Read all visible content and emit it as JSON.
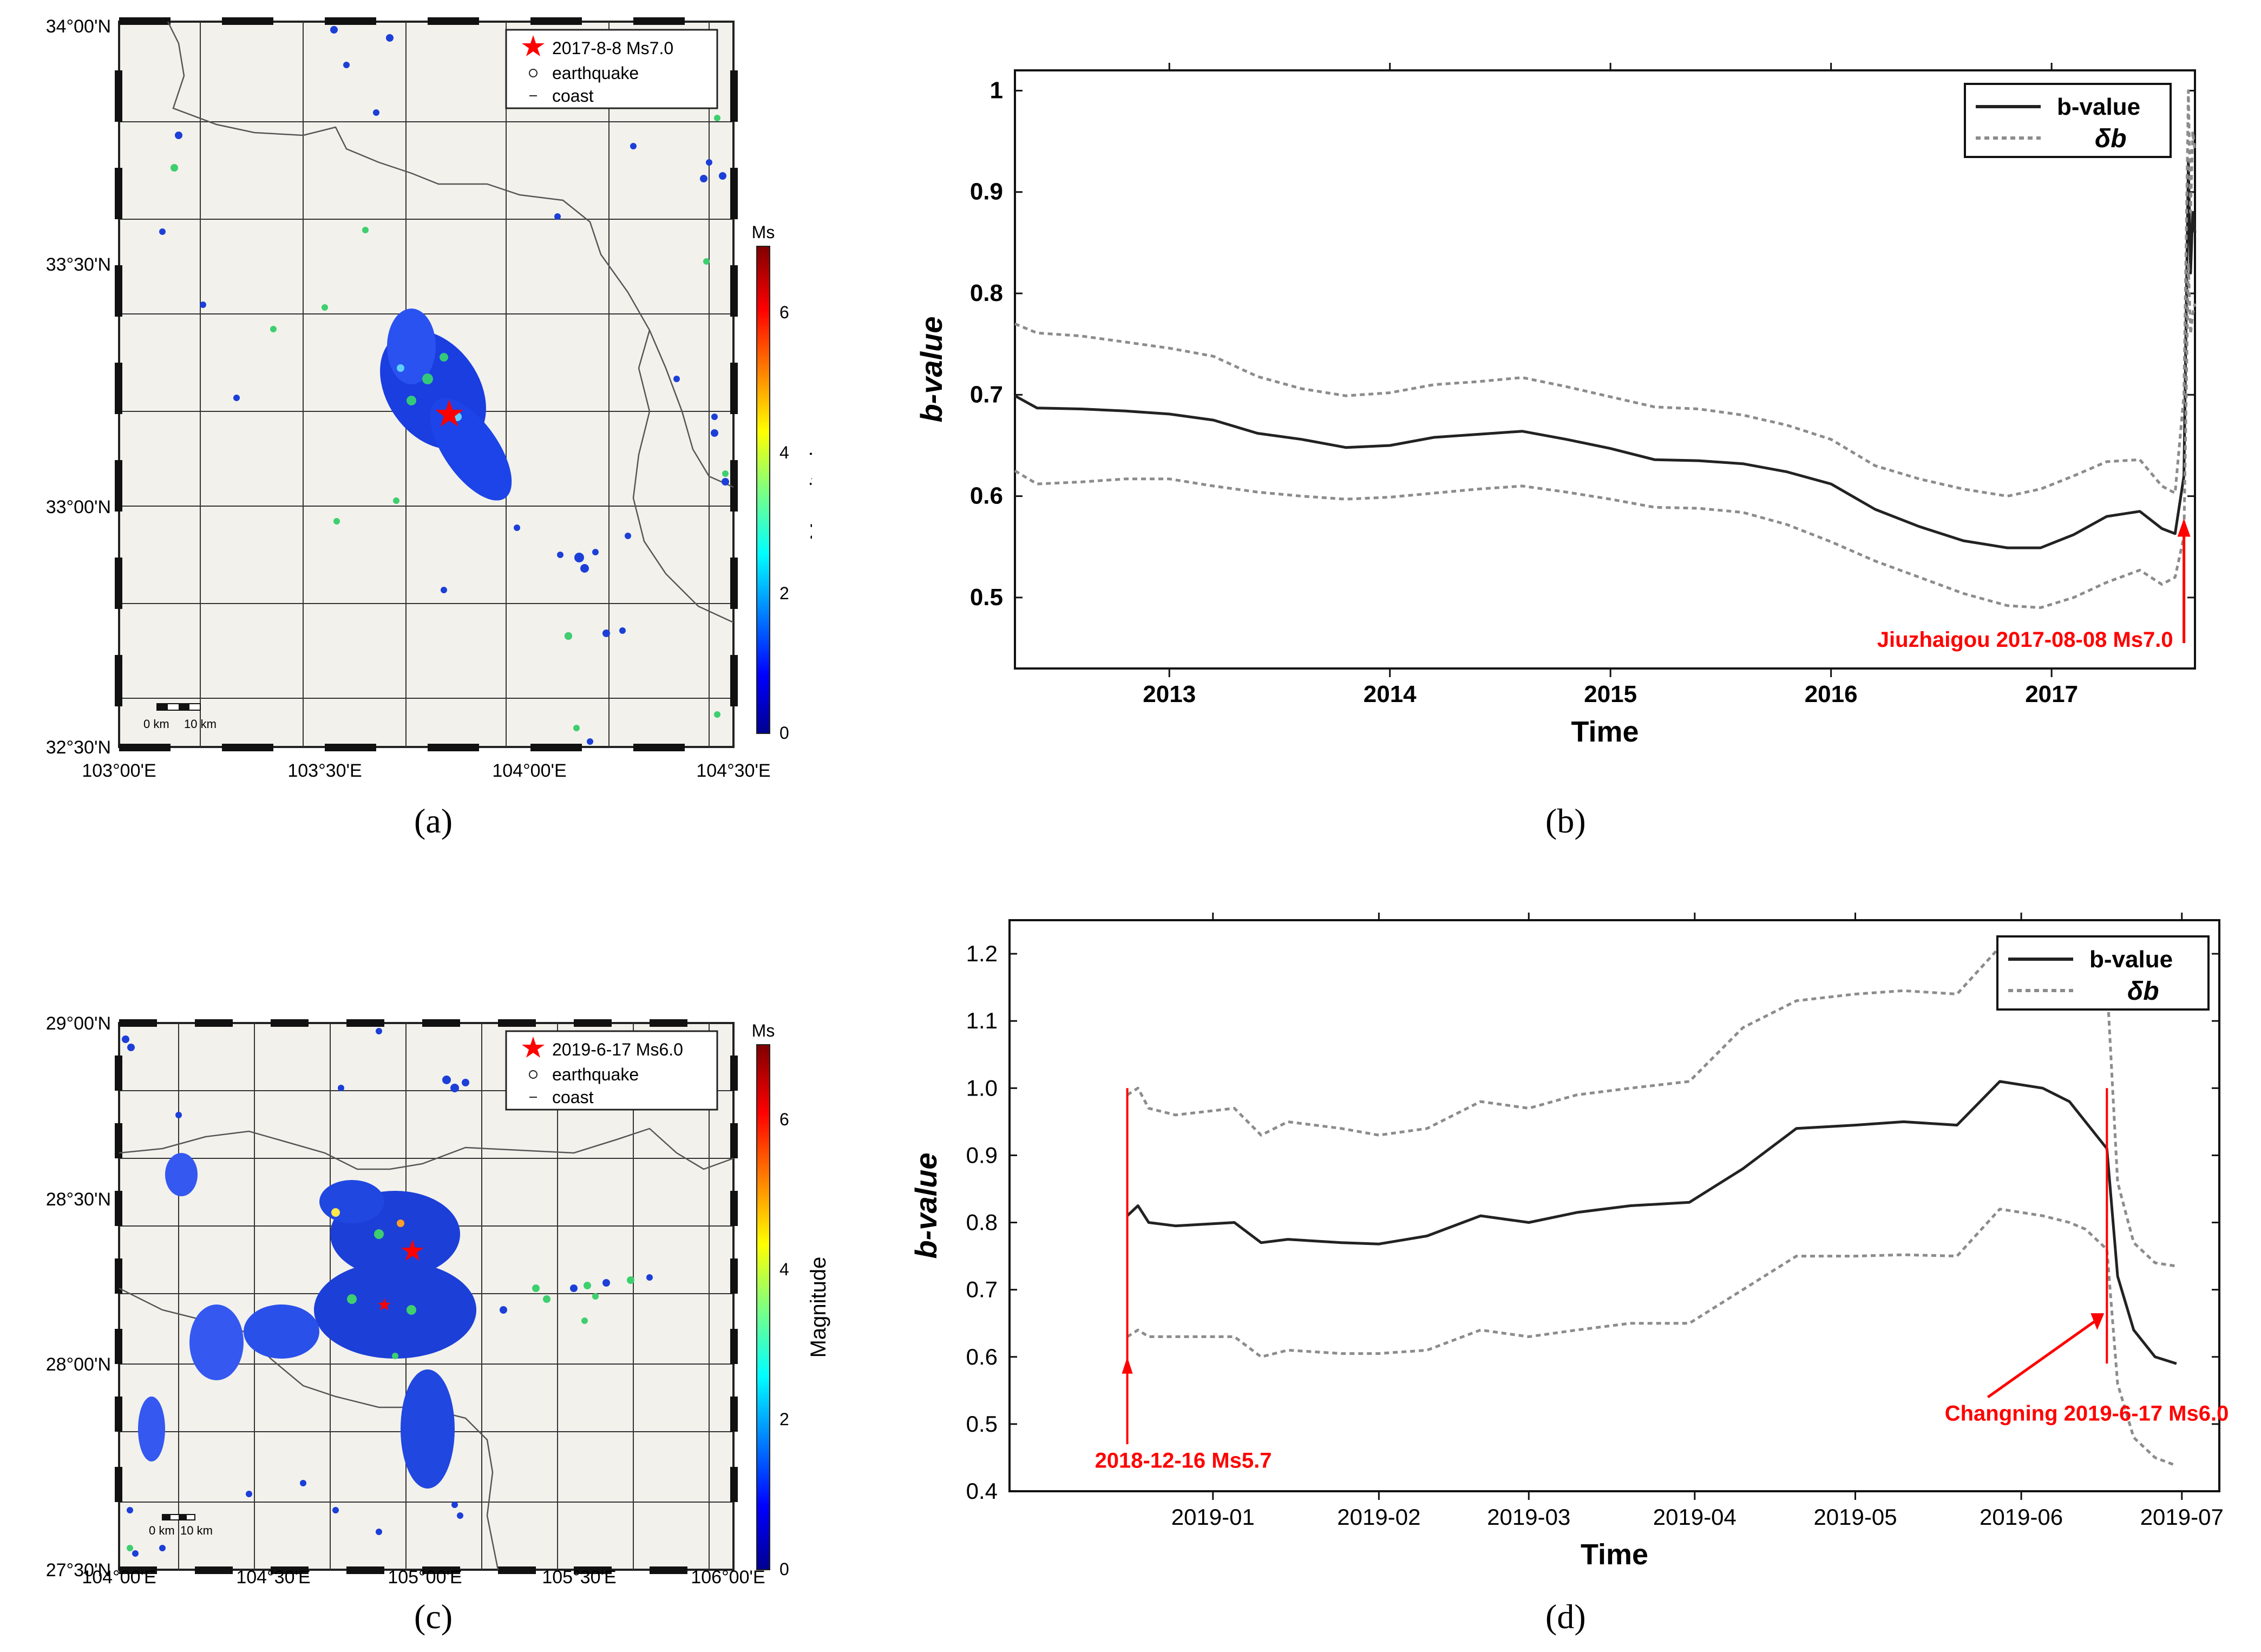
{
  "captions": {
    "a": "(a)",
    "b": "(b)",
    "c": "(c)",
    "d": "(d)"
  },
  "map_a": {
    "lat_labels": [
      "34°00'N",
      "33°30'N",
      "33°00'N",
      "32°30'N"
    ],
    "lon_labels": [
      "103°00'E",
      "103°30'E",
      "104°00'E",
      "104°30'E"
    ],
    "legend": {
      "event": "2017-8-8 Ms7.0",
      "earthquake": "earthquake",
      "coast": "coast"
    },
    "colorbar": {
      "title": "Ms",
      "label": "Magnitude",
      "ticks": [
        "0",
        "2",
        "4",
        "6"
      ]
    },
    "scale": {
      "left": "0 km",
      "right": "10 km"
    }
  },
  "map_c": {
    "lat_labels": [
      "29°00'N",
      "28°30'N",
      "28°00'N",
      "27°30'N"
    ],
    "lon_labels": [
      "104°00'E",
      "104°30'E",
      "105°00'E",
      "105°30'E",
      "106°00'E"
    ],
    "legend": {
      "event": "2019-6-17 Ms6.0",
      "earthquake": "earthquake",
      "coast": "coast"
    },
    "colorbar": {
      "title": "Ms",
      "label": "Magnitude",
      "ticks": [
        "0",
        "2",
        "4",
        "6"
      ]
    },
    "scale": {
      "left": "0 km",
      "right": "10 km"
    }
  },
  "colors": {
    "event": "#ff0000",
    "line": "#222222",
    "band": "#8c8c8c",
    "map_bg": "#f2f1ec",
    "border": "#4a4a4a"
  },
  "chart_data": [
    {
      "type": "line",
      "panel": "b",
      "xlabel": "Time",
      "ylabel": "b-value",
      "xlim": [
        2012.3,
        2017.65
      ],
      "ylim": [
        0.43,
        1.02
      ],
      "xticks": [
        "2013",
        "2014",
        "2015",
        "2016",
        "2017"
      ],
      "yticks": [
        "0.5",
        "0.6",
        "0.7",
        "0.8",
        "0.9",
        "1"
      ],
      "legend": [
        "b-value",
        "δb"
      ],
      "annotation": "Jiuzhaigou 2017-08-08 Ms7.0",
      "x": [
        2012.3,
        2012.4,
        2012.6,
        2012.8,
        2013.0,
        2013.2,
        2013.4,
        2013.6,
        2013.8,
        2014.0,
        2014.2,
        2014.4,
        2014.6,
        2014.8,
        2015.0,
        2015.2,
        2015.4,
        2015.6,
        2015.8,
        2016.0,
        2016.2,
        2016.4,
        2016.6,
        2016.8,
        2016.95,
        2017.1,
        2017.25,
        2017.4,
        2017.5,
        2017.56,
        2017.6,
        2017.62,
        2017.63,
        2017.64,
        2017.65
      ],
      "series": [
        {
          "name": "b-value",
          "values": [
            0.699,
            0.687,
            0.686,
            0.684,
            0.681,
            0.675,
            0.662,
            0.656,
            0.648,
            0.65,
            0.658,
            0.661,
            0.664,
            0.656,
            0.647,
            0.636,
            0.635,
            0.632,
            0.624,
            0.612,
            0.587,
            0.57,
            0.556,
            0.549,
            0.549,
            0.562,
            0.58,
            0.585,
            0.568,
            0.563,
            0.62,
            0.93,
            0.82,
            0.88,
            0.86
          ]
        },
        {
          "name": "δb upper",
          "values": [
            0.77,
            0.761,
            0.758,
            0.752,
            0.746,
            0.738,
            0.718,
            0.706,
            0.699,
            0.702,
            0.71,
            0.713,
            0.717,
            0.708,
            0.698,
            0.688,
            0.686,
            0.68,
            0.67,
            0.656,
            0.63,
            0.617,
            0.607,
            0.6,
            0.607,
            0.62,
            0.634,
            0.636,
            0.61,
            0.603,
            0.7,
            1.0,
            0.88,
            0.96,
            0.94
          ]
        },
        {
          "name": "δb lower",
          "values": [
            0.625,
            0.612,
            0.614,
            0.617,
            0.617,
            0.61,
            0.604,
            0.6,
            0.597,
            0.599,
            0.603,
            0.607,
            0.61,
            0.604,
            0.597,
            0.589,
            0.588,
            0.584,
            0.572,
            0.555,
            0.536,
            0.52,
            0.504,
            0.492,
            0.49,
            0.5,
            0.515,
            0.527,
            0.513,
            0.52,
            0.56,
            0.83,
            0.76,
            0.78,
            0.79
          ]
        }
      ]
    },
    {
      "type": "line",
      "panel": "d",
      "xlabel": "Time",
      "ylabel": "b-value",
      "xlim": [
        "2018-11-24",
        "2019-07-08"
      ],
      "ylim": [
        0.4,
        1.25
      ],
      "xticks": [
        "2019-01",
        "2019-02",
        "2019-03",
        "2019-04",
        "2019-05",
        "2019-06",
        "2019-07"
      ],
      "yticks": [
        "0.4",
        "0.5",
        "0.6",
        "0.7",
        "0.8",
        "0.9",
        "1.0",
        "1.1",
        "1.2"
      ],
      "legend": [
        "b-value",
        "δb"
      ],
      "annotations": [
        "2018-12-16 Ms5.7",
        "Changning 2019-6-17 Ms6.0"
      ],
      "x": [
        "2018-12-16",
        "2018-12-18",
        "2018-12-20",
        "2018-12-25",
        "2019-01-05",
        "2019-01-10",
        "2019-01-15",
        "2019-01-25",
        "2019-02-01",
        "2019-02-10",
        "2019-02-20",
        "2019-03-01",
        "2019-03-10",
        "2019-03-20",
        "2019-03-31",
        "2019-04-10",
        "2019-04-20",
        "2019-05-01",
        "2019-05-10",
        "2019-05-20",
        "2019-05-28",
        "2019-06-05",
        "2019-06-10",
        "2019-06-13",
        "2019-06-17",
        "2019-06-19",
        "2019-06-22",
        "2019-06-26",
        "2019-06-30"
      ],
      "series": [
        {
          "name": "b-value",
          "values": [
            0.81,
            0.825,
            0.8,
            0.795,
            0.8,
            0.77,
            0.775,
            0.77,
            0.768,
            0.78,
            0.81,
            0.8,
            0.815,
            0.825,
            0.83,
            0.88,
            0.94,
            0.945,
            0.95,
            0.945,
            1.01,
            1.0,
            0.98,
            0.95,
            0.91,
            0.72,
            0.64,
            0.6,
            0.59
          ]
        },
        {
          "name": "δb upper",
          "values": [
            0.99,
            1.0,
            0.97,
            0.96,
            0.97,
            0.93,
            0.95,
            0.94,
            0.93,
            0.94,
            0.98,
            0.97,
            0.99,
            1.0,
            1.01,
            1.09,
            1.13,
            1.14,
            1.145,
            1.14,
            1.21,
            1.19,
            1.18,
            1.18,
            1.16,
            0.86,
            0.77,
            0.74,
            0.735
          ]
        },
        {
          "name": "δb lower",
          "values": [
            0.63,
            0.64,
            0.63,
            0.63,
            0.63,
            0.6,
            0.61,
            0.605,
            0.605,
            0.61,
            0.64,
            0.63,
            0.64,
            0.65,
            0.65,
            0.7,
            0.75,
            0.75,
            0.752,
            0.75,
            0.82,
            0.81,
            0.8,
            0.79,
            0.76,
            0.56,
            0.48,
            0.45,
            0.438
          ]
        }
      ]
    }
  ]
}
